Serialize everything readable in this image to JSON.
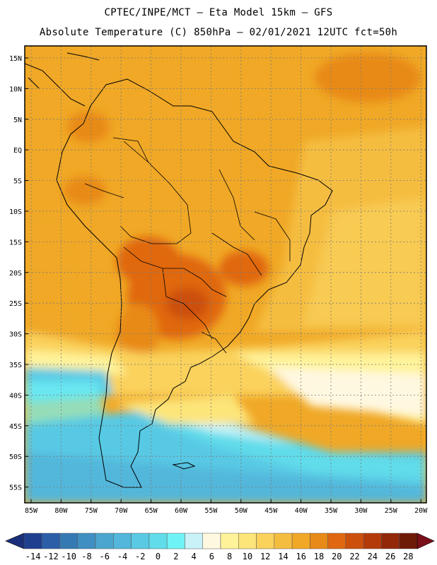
{
  "title": {
    "line1": "CPTEC/INPE/MCT —  Eta Model 15km — GFS",
    "line2": "Absolute Temperature (C) 850hPa — 02/01/2021 12UTC fct=50h"
  },
  "lat_labels": [
    "15N",
    "10N",
    "5N",
    "EQ",
    "5S",
    "10S",
    "15S",
    "20S",
    "25S",
    "30S",
    "35S",
    "40S",
    "45S",
    "50S",
    "55S"
  ],
  "lon_labels": [
    "85W",
    "80W",
    "75W",
    "70W",
    "65W",
    "60W",
    "55W",
    "50W",
    "45W",
    "40W",
    "35W",
    "30W",
    "25W",
    "20W"
  ],
  "colorbar": {
    "labels": [
      "-14",
      "-12",
      "-10",
      "-8",
      "-6",
      "-4",
      "-2",
      "0",
      "2",
      "4",
      "6",
      "8",
      "10",
      "12",
      "14",
      "16",
      "18",
      "20",
      "22",
      "24",
      "26",
      "28"
    ],
    "colors": [
      "#1f3f8f",
      "#2a5ea6",
      "#3579b3",
      "#3f8fc2",
      "#4aa6cf",
      "#52b7db",
      "#59c9e4",
      "#60dcea",
      "#70f3f6",
      "#c8f2f8",
      "#fff8e0",
      "#fff39a",
      "#fde57a",
      "#fad25c",
      "#f5bd3f",
      "#f0a826",
      "#e88a17",
      "#e06810",
      "#cc4f0c",
      "#b43a0a",
      "#922808",
      "#6e1a08"
    ],
    "left_arrow_color": "#1a2f7a",
    "right_arrow_color": "#7a0f1a"
  },
  "colors": {
    "frame": "#000000",
    "gridline": "#7a7a7a",
    "coast": "#000000"
  }
}
